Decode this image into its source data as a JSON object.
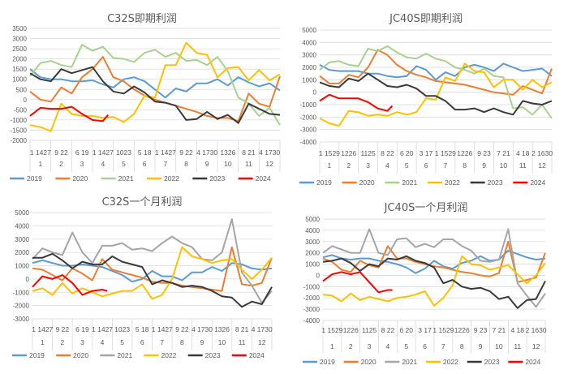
{
  "colors": {
    "2019": "#5B9BD5",
    "2020": "#ED7D31",
    "2021_spot": "#A9D18E",
    "2021_month": "#A5A5A5",
    "2022": "#FFC000",
    "2023": "#3A3A3A",
    "2024": "#FF0000",
    "grid": "#D9D9D9"
  },
  "chart_data": [
    {
      "type": "line",
      "title": "C32S即期利润",
      "ylim": [
        -2000,
        3500
      ],
      "yticks": [
        -2000,
        -1500,
        -1000,
        -500,
        0,
        500,
        1000,
        1500,
        2000,
        2500,
        3000,
        3500
      ],
      "grid": true,
      "legend": "bottom",
      "x_note_step_months": 0.5,
      "months": [
        "1",
        "2",
        "3",
        "4",
        "5",
        "6",
        "7",
        "8",
        "9",
        "10",
        "11",
        "12"
      ],
      "day_labels": [
        "1 1427",
        "9 22",
        "6 19",
        "1 1427",
        "1023",
        "5 18",
        "1 1427",
        "9 22",
        "4 1730",
        "1326",
        "8 21",
        "4 1730"
      ],
      "series": [
        {
          "name": "2019",
          "values": [
            1500,
            1100,
            1000,
            1000,
            900,
            900,
            950,
            750,
            600,
            1000,
            1100,
            900,
            500,
            100,
            550,
            400,
            800,
            800,
            1000,
            700,
            1100,
            850,
            650,
            800,
            450
          ]
        },
        {
          "name": "2020",
          "values": [
            400,
            0,
            -100,
            600,
            300,
            1100,
            1500,
            2100,
            1100,
            900,
            500,
            200,
            0,
            -150,
            -300,
            -450,
            -600,
            -800,
            -900,
            -900,
            -1050,
            300,
            -200,
            -350,
            1150
          ]
        },
        {
          "name": "2021",
          "values": [
            1150,
            1800,
            1900,
            1700,
            1600,
            2700,
            2400,
            2600,
            2050,
            2000,
            1850,
            2300,
            2450,
            2100,
            2300,
            1900,
            1950,
            1700,
            2100,
            1400,
            100,
            -200,
            -800,
            -400,
            -1250
          ]
        },
        {
          "name": "2022",
          "values": [
            -1250,
            -1350,
            -1550,
            -200,
            -700,
            -800,
            -800,
            -900,
            -850,
            -1100,
            -700,
            200,
            100,
            1700,
            1700,
            2800,
            2300,
            2200,
            1100,
            1550,
            1600,
            950,
            1450,
            950,
            1250
          ]
        },
        {
          "name": "2023",
          "values": [
            1300,
            1000,
            900,
            1500,
            1300,
            1450,
            1600,
            900,
            400,
            300,
            650,
            350,
            -100,
            -150,
            -300,
            -1000,
            -950,
            -600,
            -950,
            -750,
            -1150,
            -200,
            -450,
            -700,
            -750
          ]
        },
        {
          "name": "2024",
          "values": [
            -800,
            -400,
            -450,
            -450,
            -350,
            -700,
            -1000,
            -1050,
            -750
          ]
        }
      ]
    },
    {
      "type": "line",
      "title": "JC40S即期利润",
      "ylim": [
        -4000,
        5000
      ],
      "yticks": [
        -4000,
        -3000,
        -2000,
        -1000,
        0,
        1000,
        2000,
        3000,
        4000,
        5000
      ],
      "grid": true,
      "legend": "bottom",
      "months": [
        "1",
        "2",
        "3",
        "4",
        "5",
        "6",
        "7",
        "8",
        "9",
        "10",
        "11",
        "12"
      ],
      "day_labels": [
        "1 1529",
        "1226",
        "1125",
        "8 22",
        "6 20",
        "3 17",
        "1 1529",
        "1226",
        "9 23",
        "7 21",
        "4 18",
        "2 1630"
      ],
      "series": [
        {
          "name": "2019",
          "values": [
            2200,
            1800,
            1700,
            1700,
            1700,
            1500,
            1500,
            1300,
            1200,
            1300,
            2100,
            1800,
            1000,
            1600,
            1300,
            2000,
            2200,
            2000,
            1700,
            2300,
            2000,
            1700,
            1800,
            1900,
            1300
          ]
        },
        {
          "name": "2020",
          "values": [
            1300,
            700,
            700,
            1400,
            1200,
            2000,
            3400,
            3000,
            2200,
            1700,
            1400,
            1200,
            900,
            800,
            700,
            600,
            400,
            200,
            0,
            -100,
            -200,
            500,
            200,
            -100,
            1900
          ]
        },
        {
          "name": "2021",
          "values": [
            1800,
            2400,
            2500,
            2200,
            2100,
            3500,
            3300,
            3700,
            3200,
            2800,
            2700,
            3100,
            2700,
            2500,
            2000,
            1800,
            1500,
            1900,
            1300,
            1200,
            -1300,
            -1200,
            -1800,
            -1000,
            -2100
          ]
        },
        {
          "name": "2022",
          "values": [
            -2100,
            -2500,
            -2700,
            -1500,
            -1600,
            -1900,
            -1800,
            -1900,
            -1600,
            -1800,
            -1600,
            -500,
            -600,
            1200,
            900,
            2300,
            1700,
            1600,
            400,
            1000,
            1000,
            200,
            1000,
            400,
            800
          ]
        },
        {
          "name": "2023",
          "values": [
            800,
            500,
            400,
            1100,
            900,
            1500,
            1000,
            500,
            400,
            600,
            300,
            -300,
            -300,
            -700,
            -1400,
            -1400,
            -1300,
            -1600,
            -1300,
            -1600,
            -1800,
            -700,
            -900,
            -1000,
            -700
          ]
        },
        {
          "name": "2024",
          "values": [
            -700,
            -200,
            -500,
            -500,
            -500,
            -800,
            -1300,
            -1500,
            -1100
          ]
        }
      ]
    },
    {
      "type": "line",
      "title": "C32S一个月利润",
      "ylim": [
        -3000,
        5000
      ],
      "yticks": [
        -3000,
        -2000,
        -1000,
        0,
        1000,
        2000,
        3000,
        4000,
        5000
      ],
      "grid": true,
      "legend": "bottom",
      "months": [
        "1",
        "2",
        "3",
        "4",
        "5",
        "6",
        "7",
        "8",
        "9",
        "10",
        "11",
        "12"
      ],
      "day_labels": [
        "1 1427",
        "9 22",
        "6 19",
        "1 1427",
        "1023",
        "5 18",
        "1 1427",
        "9 22",
        "4 1730",
        "1326",
        "8 21",
        "4 1730"
      ],
      "series": [
        {
          "name": "2019",
          "values": [
            1200,
            1400,
            1200,
            1000,
            1000,
            1100,
            1000,
            900,
            600,
            300,
            -200,
            0,
            600,
            200,
            200,
            -100,
            500,
            500,
            900,
            600,
            1200,
            1100,
            800,
            700,
            800
          ]
        },
        {
          "name": "2020",
          "values": [
            800,
            700,
            300,
            -100,
            800,
            400,
            -100,
            1500,
            700,
            500,
            300,
            100,
            -200,
            -300,
            -300,
            -500,
            -600,
            -700,
            -800,
            -900,
            2400,
            -400,
            -500,
            -300,
            1600
          ]
        },
        {
          "name": "2021",
          "values": [
            1500,
            2300,
            2000,
            1800,
            3500,
            2000,
            1200,
            2500,
            2500,
            2700,
            2200,
            2300,
            2100,
            2700,
            3200,
            2700,
            2400,
            1500,
            1400,
            2000,
            4500,
            500,
            -500,
            -1800,
            -900
          ]
        },
        {
          "name": "2022",
          "values": [
            -900,
            -700,
            -1200,
            -300,
            -1100,
            -700,
            -1000,
            -1300,
            -1100,
            -900,
            -900,
            -400,
            -1500,
            -1200,
            0,
            2400,
            1700,
            1500,
            1200,
            1400,
            1500,
            700,
            0,
            700,
            1600
          ]
        },
        {
          "name": "2023",
          "values": [
            1600,
            1600,
            1900,
            1400,
            800,
            1300,
            1100,
            1100,
            1700,
            1300,
            1100,
            900,
            -400,
            -100,
            -300,
            -600,
            -500,
            -600,
            -900,
            -1300,
            -1400,
            -2100,
            -1700,
            -1900,
            -600
          ]
        },
        {
          "name": "2024",
          "values": [
            -600,
            200,
            0,
            300,
            -300,
            -1200,
            -900,
            -800,
            -900
          ]
        }
      ]
    },
    {
      "type": "line",
      "title": "JC40S一个月利润",
      "ylim": [
        -4000,
        5000
      ],
      "yticks": [
        -4000,
        -3000,
        -2000,
        -1000,
        0,
        1000,
        2000,
        3000,
        4000,
        5000
      ],
      "grid": true,
      "legend": "bottom",
      "months": [
        "1",
        "2",
        "3",
        "4",
        "5",
        "6",
        "7",
        "8",
        "9",
        "10",
        "11",
        "12"
      ],
      "day_labels": [
        "1 1529",
        "1226",
        "1125",
        "8 22",
        "6 20",
        "3 17",
        "1 1529",
        "1226",
        "9 23",
        "7 21",
        "4 18",
        "2 1630"
      ],
      "series": [
        {
          "name": "2019",
          "values": [
            1600,
            1800,
            1500,
            1400,
            1500,
            1500,
            1300,
            1200,
            1000,
            700,
            200,
            600,
            1300,
            800,
            600,
            1100,
            1300,
            1700,
            1300,
            1400,
            2200,
            1900,
            1600,
            1400,
            1500
          ]
        },
        {
          "name": "2020",
          "values": [
            1500,
            1200,
            500,
            300,
            1300,
            900,
            700,
            2600,
            1500,
            1500,
            1200,
            1000,
            800,
            700,
            500,
            300,
            200,
            0,
            -100,
            200,
            3000,
            -600,
            -400,
            -200,
            2000
          ]
        },
        {
          "name": "2021",
          "values": [
            2000,
            2600,
            2300,
            2000,
            2000,
            4100,
            2000,
            1800,
            3200,
            3300,
            2500,
            2800,
            2500,
            3200,
            3200,
            2600,
            2200,
            1300,
            1200,
            1400,
            4100,
            -700,
            -1800,
            -2800,
            -1600
          ]
        },
        {
          "name": "2022",
          "values": [
            -1700,
            -1800,
            -2300,
            -1600,
            -2200,
            -1900,
            -2100,
            -2300,
            -2000,
            -1900,
            -1700,
            -1400,
            -2700,
            -2000,
            -900,
            1700,
            1000,
            900,
            500,
            700,
            900,
            100,
            -700,
            0,
            1100
          ]
        },
        {
          "name": "2023",
          "values": [
            1200,
            1300,
            1500,
            1100,
            400,
            1000,
            800,
            1500,
            1400,
            1700,
            1300,
            1100,
            700,
            -700,
            -400,
            -1000,
            -1200,
            -1100,
            -1400,
            -2100,
            -1900,
            -2900,
            -2200,
            -2100,
            -500
          ]
        },
        {
          "name": "2024",
          "values": [
            -500,
            100,
            300,
            100,
            300,
            -600,
            -1500,
            -1300,
            -1300
          ]
        }
      ]
    }
  ]
}
